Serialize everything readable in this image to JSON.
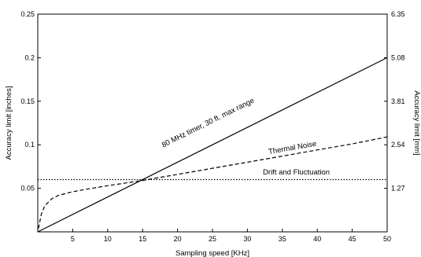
{
  "chart_data": {
    "type": "line",
    "xlabel": "Sampling speed [KHz]",
    "ylabel_left": "Accuracy limit [inches]",
    "ylabel_right": "Accuracy limit [mm]",
    "xlim": [
      0,
      50
    ],
    "ylim": [
      0,
      0.25
    ],
    "x_ticks": [
      5,
      10,
      15,
      20,
      25,
      30,
      35,
      40,
      45,
      50
    ],
    "x_tick_labels": [
      "5",
      "10",
      "15",
      "20",
      "25",
      "30",
      "35",
      "40",
      "45",
      "50"
    ],
    "y_ticks_left": [
      0.05,
      0.1,
      0.15,
      0.2,
      0.25
    ],
    "y_tick_labels_left": [
      "0.05",
      "0.1",
      "0.15",
      "0.2",
      "0.25"
    ],
    "y_ticks_right_mm": [
      1.27,
      2.54,
      3.81,
      5.08,
      6.35
    ],
    "y_tick_labels_right": [
      "1.27",
      "2.54",
      "3.81",
      "5.08",
      "6.35"
    ],
    "grid": false,
    "series": [
      {
        "name": "80 MHz timer, 30 ft. max range",
        "style": "solid",
        "color": "#000000",
        "x": [
          0,
          50
        ],
        "y": [
          0,
          0.2
        ]
      },
      {
        "name": "Thermal Noise",
        "style": "dashed",
        "color": "#000000",
        "x": [
          0.1,
          0.5,
          1,
          2,
          3,
          4,
          5,
          7,
          10,
          15,
          20,
          25,
          30,
          35,
          40,
          45,
          50
        ],
        "y": [
          0.004,
          0.02,
          0.03,
          0.038,
          0.042,
          0.044,
          0.046,
          0.049,
          0.053,
          0.059,
          0.066,
          0.073,
          0.08,
          0.087,
          0.094,
          0.101,
          0.109
        ]
      },
      {
        "name": "Drift and Fluctuation",
        "style": "dotted",
        "color": "#000000",
        "x": [
          0,
          50
        ],
        "y": [
          0.06,
          0.06
        ]
      }
    ],
    "annotations": [
      {
        "text": "80 MHz timer, 30 ft. max range",
        "x": 24.5,
        "y": 0.123,
        "rotate_with_series": 0
      },
      {
        "text": "Thermal Noise",
        "x": 36.5,
        "y": 0.094,
        "rotate_with_series": 1
      },
      {
        "text": "Drift and Fluctuation",
        "x": 37,
        "y": 0.066,
        "rotate_with_series": null
      }
    ]
  }
}
